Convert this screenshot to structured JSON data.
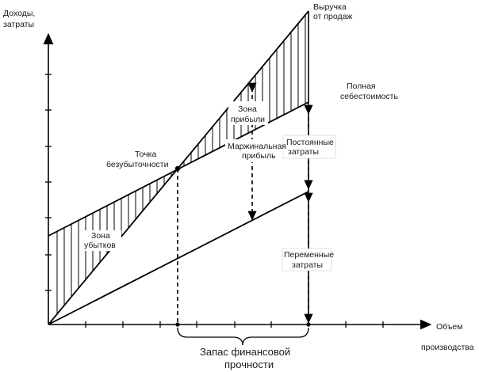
{
  "axes": {
    "y_label_line1": "Доходы,",
    "y_label_line2": "затраты",
    "x_label_line1": "Объем",
    "x_label_line2": "производства"
  },
  "lines": {
    "revenue_line1": "Выручка",
    "revenue_line2": "от продаж",
    "total_cost_line1": "Полная",
    "total_cost_line2": "себестоимость"
  },
  "zones": {
    "breakeven_line1": "Точка",
    "breakeven_line2": "безубыточности",
    "profit_line1": "Зона",
    "profit_line2": "прибыли",
    "loss_line1": "Зона",
    "loss_line2": "убытков",
    "margin_line1": "Маржинальная",
    "margin_line2": "прибыль",
    "fixed_line1": "Постоянные",
    "fixed_line2": "затраты",
    "variable_line1": "Переменные",
    "variable_line2": "затраты",
    "safety_line1": "Запас финансовой",
    "safety_line2": "прочности"
  }
}
